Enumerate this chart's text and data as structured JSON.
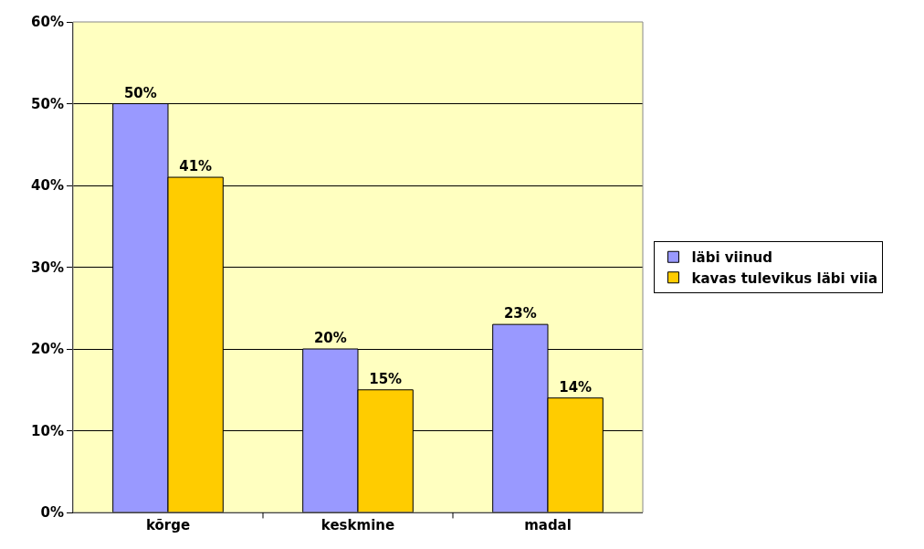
{
  "chart_data": {
    "type": "bar",
    "categories": [
      "kõrge",
      "keskmine",
      "madal"
    ],
    "series": [
      {
        "name": "läbi viinud",
        "color": "#9999ff",
        "values": [
          50,
          20,
          23
        ],
        "value_labels": [
          "50%",
          "20%",
          "23%"
        ]
      },
      {
        "name": "kavas tulevikus läbi viia",
        "color": "#ffcc00",
        "values": [
          41,
          15,
          14
        ],
        "value_labels": [
          "41%",
          "15%",
          "14%"
        ]
      }
    ],
    "ylim": [
      0,
      60
    ],
    "yticks": [
      {
        "value": 0,
        "label": "0%"
      },
      {
        "value": 10,
        "label": "10%"
      },
      {
        "value": 20,
        "label": "20%"
      },
      {
        "value": 30,
        "label": "30%"
      },
      {
        "value": 40,
        "label": "40%"
      },
      {
        "value": 50,
        "label": "50%"
      },
      {
        "value": 60,
        "label": "60%"
      }
    ],
    "grid": "y",
    "legend": "right"
  }
}
